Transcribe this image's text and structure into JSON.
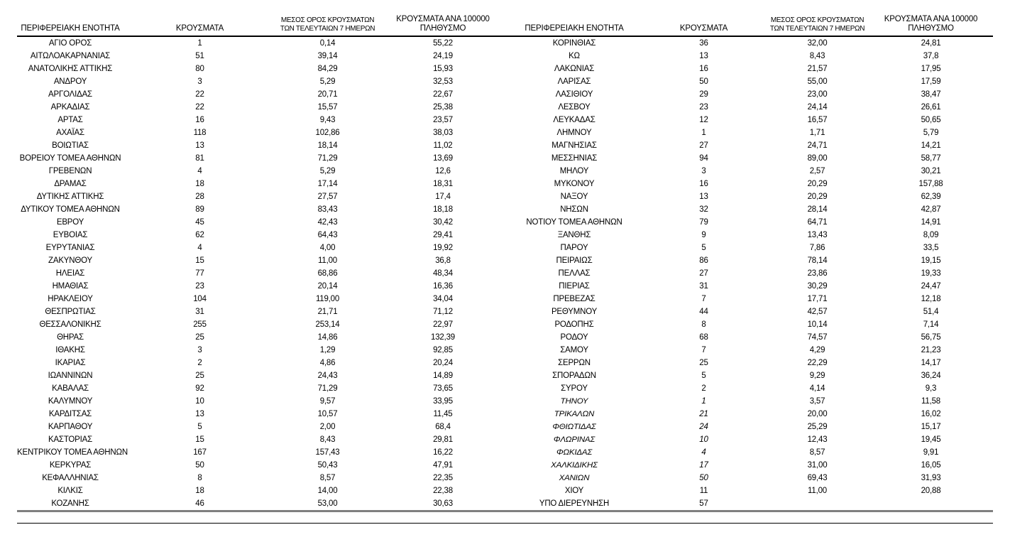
{
  "table": {
    "headers": {
      "region": "ΠΕΡΙΦΕΡΕΙΑΚΗ ΕΝΟΤΗΤΑ",
      "cases": "ΚΡΟΥΣΜΑΤΑ",
      "avg7_line1": "ΜΕΣΟΣ ΟΡΟΣ ΚΡΟΥΣΜΑΤΩΝ",
      "avg7_line2": "ΤΩΝ ΤΕΛΕΥΤΑΙΩΝ 7 ΗΜΕΡΩΝ",
      "per100k_line1": "ΚΡΟΥΣΜΑΤΑ ΑΝΑ 100000",
      "per100k_line2": "ΠΛΗΘΥΣΜΟ"
    },
    "left_rows": [
      {
        "name": "ΑΓΙΟ ΟΡΟΣ",
        "cases": "1",
        "avg7": "0,14",
        "per100k": "55,22"
      },
      {
        "name": "ΑΙΤΩΛΟΑΚΑΡΝΑΝΙΑΣ",
        "cases": "51",
        "avg7": "39,14",
        "per100k": "24,19"
      },
      {
        "name": "ΑΝΑΤΟΛΙΚΗΣ ΑΤΤΙΚΗΣ",
        "cases": "80",
        "avg7": "84,29",
        "per100k": "15,93"
      },
      {
        "name": "ΑΝΔΡΟΥ",
        "cases": "3",
        "avg7": "5,29",
        "per100k": "32,53"
      },
      {
        "name": "ΑΡΓΟΛΙΔΑΣ",
        "cases": "22",
        "avg7": "20,71",
        "per100k": "22,67"
      },
      {
        "name": "ΑΡΚΑΔΙΑΣ",
        "cases": "22",
        "avg7": "15,57",
        "per100k": "25,38"
      },
      {
        "name": "ΑΡΤΑΣ",
        "cases": "16",
        "avg7": "9,43",
        "per100k": "23,57"
      },
      {
        "name": "ΑΧΑΪΑΣ",
        "cases": "118",
        "avg7": "102,86",
        "per100k": "38,03"
      },
      {
        "name": "ΒΟΙΩΤΙΑΣ",
        "cases": "13",
        "avg7": "18,14",
        "per100k": "11,02"
      },
      {
        "name": "ΒΟΡΕΙΟΥ ΤΟΜΕΑ ΑΘΗΝΩΝ",
        "cases": "81",
        "avg7": "71,29",
        "per100k": "13,69"
      },
      {
        "name": "ΓΡΕΒΕΝΩΝ",
        "cases": "4",
        "avg7": "5,29",
        "per100k": "12,6"
      },
      {
        "name": "ΔΡΑΜΑΣ",
        "cases": "18",
        "avg7": "17,14",
        "per100k": "18,31"
      },
      {
        "name": "ΔΥΤΙΚΗΣ ΑΤΤΙΚΗΣ",
        "cases": "28",
        "avg7": "27,57",
        "per100k": "17,4"
      },
      {
        "name": "ΔΥΤΙΚΟΥ ΤΟΜΕΑ ΑΘΗΝΩΝ",
        "cases": "89",
        "avg7": "83,43",
        "per100k": "18,18"
      },
      {
        "name": "ΕΒΡΟΥ",
        "cases": "45",
        "avg7": "42,43",
        "per100k": "30,42"
      },
      {
        "name": "ΕΥΒΟΙΑΣ",
        "cases": "62",
        "avg7": "64,43",
        "per100k": "29,41"
      },
      {
        "name": "ΕΥΡΥΤΑΝΙΑΣ",
        "cases": "4",
        "avg7": "4,00",
        "per100k": "19,92"
      },
      {
        "name": "ΖΑΚΥΝΘΟΥ",
        "cases": "15",
        "avg7": "11,00",
        "per100k": "36,8"
      },
      {
        "name": "ΗΛΕΙΑΣ",
        "cases": "77",
        "avg7": "68,86",
        "per100k": "48,34"
      },
      {
        "name": "ΗΜΑΘΙΑΣ",
        "cases": "23",
        "avg7": "20,14",
        "per100k": "16,36"
      },
      {
        "name": "ΗΡΑΚΛΕΙΟΥ",
        "cases": "104",
        "avg7": "119,00",
        "per100k": "34,04"
      },
      {
        "name": "ΘΕΣΠΡΩΤΙΑΣ",
        "cases": "31",
        "avg7": "21,71",
        "per100k": "71,12"
      },
      {
        "name": "ΘΕΣΣΑΛΟΝΙΚΗΣ",
        "cases": "255",
        "avg7": "253,14",
        "per100k": "22,97"
      },
      {
        "name": "ΘΗΡΑΣ",
        "cases": "25",
        "avg7": "14,86",
        "per100k": "132,39"
      },
      {
        "name": "ΙΘΑΚΗΣ",
        "cases": "3",
        "avg7": "1,29",
        "per100k": "92,85"
      },
      {
        "name": "ΙΚΑΡΙΑΣ",
        "cases": "2",
        "avg7": "4,86",
        "per100k": "20,24"
      },
      {
        "name": "ΙΩΑΝΝΙΝΩΝ",
        "cases": "25",
        "avg7": "24,43",
        "per100k": "14,89"
      },
      {
        "name": "ΚΑΒΑΛΑΣ",
        "cases": "92",
        "avg7": "71,29",
        "per100k": "73,65"
      },
      {
        "name": "ΚΑΛΥΜΝΟΥ",
        "cases": "10",
        "avg7": "9,57",
        "per100k": "33,95"
      },
      {
        "name": "ΚΑΡΔΙΤΣΑΣ",
        "cases": "13",
        "avg7": "10,57",
        "per100k": "11,45"
      },
      {
        "name": "ΚΑΡΠΑΘΟΥ",
        "cases": "5",
        "avg7": "2,00",
        "per100k": "68,4"
      },
      {
        "name": "ΚΑΣΤΟΡΙΑΣ",
        "cases": "15",
        "avg7": "8,43",
        "per100k": "29,81"
      },
      {
        "name": "ΚΕΝΤΡΙΚΟΥ ΤΟΜΕΑ ΑΘΗΝΩΝ",
        "cases": "167",
        "avg7": "157,43",
        "per100k": "16,22"
      },
      {
        "name": "ΚΕΡΚΥΡΑΣ",
        "cases": "50",
        "avg7": "50,43",
        "per100k": "47,91"
      },
      {
        "name": "ΚΕΦΑΛΛΗΝΙΑΣ",
        "cases": "8",
        "avg7": "8,57",
        "per100k": "22,35"
      },
      {
        "name": "ΚΙΛΚΙΣ",
        "cases": "18",
        "avg7": "14,00",
        "per100k": "22,38"
      },
      {
        "name": "ΚΟΖΑΝΗΣ",
        "cases": "46",
        "avg7": "53,00",
        "per100k": "30,63"
      }
    ],
    "right_rows": [
      {
        "name": "ΚΟΡΙΝΘΙΑΣ",
        "cases": "36",
        "avg7": "32,00",
        "per100k": "24,81"
      },
      {
        "name": "ΚΩ",
        "cases": "13",
        "avg7": "8,43",
        "per100k": "37,8"
      },
      {
        "name": "ΛΑΚΩΝΙΑΣ",
        "cases": "16",
        "avg7": "21,57",
        "per100k": "17,95"
      },
      {
        "name": "ΛΑΡΙΣΑΣ",
        "cases": "50",
        "avg7": "55,00",
        "per100k": "17,59"
      },
      {
        "name": "ΛΑΣΙΘΙΟΥ",
        "cases": "29",
        "avg7": "23,00",
        "per100k": "38,47"
      },
      {
        "name": "ΛΕΣΒΟΥ",
        "cases": "23",
        "avg7": "24,14",
        "per100k": "26,61"
      },
      {
        "name": "ΛΕΥΚΑΔΑΣ",
        "cases": "12",
        "avg7": "16,57",
        "per100k": "50,65"
      },
      {
        "name": "ΛΗΜΝΟΥ",
        "cases": "1",
        "avg7": "1,71",
        "per100k": "5,79"
      },
      {
        "name": "ΜΑΓΝΗΣΙΑΣ",
        "cases": "27",
        "avg7": "24,71",
        "per100k": "14,21"
      },
      {
        "name": "ΜΕΣΣΗΝΙΑΣ",
        "cases": "94",
        "avg7": "89,00",
        "per100k": "58,77"
      },
      {
        "name": "ΜΗΛΟΥ",
        "cases": "3",
        "avg7": "2,57",
        "per100k": "30,21"
      },
      {
        "name": "ΜΥΚΟΝΟΥ",
        "cases": "16",
        "avg7": "20,29",
        "per100k": "157,88"
      },
      {
        "name": "ΝΑΞΟΥ",
        "cases": "13",
        "avg7": "20,29",
        "per100k": "62,39"
      },
      {
        "name": "ΝΗΣΩΝ",
        "cases": "32",
        "avg7": "28,14",
        "per100k": "42,87"
      },
      {
        "name": "ΝΟΤΙΟΥ ΤΟΜΕΑ ΑΘΗΝΩΝ",
        "cases": "79",
        "avg7": "64,71",
        "per100k": "14,91"
      },
      {
        "name": "ΞΑΝΘΗΣ",
        "cases": "9",
        "avg7": "13,43",
        "per100k": "8,09"
      },
      {
        "name": "ΠΑΡΟΥ",
        "cases": "5",
        "avg7": "7,86",
        "per100k": "33,5"
      },
      {
        "name": "ΠΕΙΡΑΙΩΣ",
        "cases": "86",
        "avg7": "78,14",
        "per100k": "19,15"
      },
      {
        "name": "ΠΕΛΛΑΣ",
        "cases": "27",
        "avg7": "23,86",
        "per100k": "19,33"
      },
      {
        "name": "ΠΙΕΡΙΑΣ",
        "cases": "31",
        "avg7": "30,29",
        "per100k": "24,47"
      },
      {
        "name": "ΠΡΕΒΕΖΑΣ",
        "cases": "7",
        "avg7": "17,71",
        "per100k": "12,18"
      },
      {
        "name": "ΡΕΘΥΜΝΟΥ",
        "cases": "44",
        "avg7": "42,57",
        "per100k": "51,4"
      },
      {
        "name": "ΡΟΔΟΠΗΣ",
        "cases": "8",
        "avg7": "10,14",
        "per100k": "7,14"
      },
      {
        "name": "ΡΟΔΟΥ",
        "cases": "68",
        "avg7": "74,57",
        "per100k": "56,75"
      },
      {
        "name": "ΣΑΜΟΥ",
        "cases": "7",
        "avg7": "4,29",
        "per100k": "21,23"
      },
      {
        "name": "ΣΕΡΡΩΝ",
        "cases": "25",
        "avg7": "22,29",
        "per100k": "14,17"
      },
      {
        "name": "ΣΠΟΡΑΔΩΝ",
        "cases": "5",
        "avg7": "9,29",
        "per100k": "36,24"
      },
      {
        "name": "ΣΥΡΟΥ",
        "cases": "2",
        "avg7": "4,14",
        "per100k": "9,3"
      },
      {
        "name": "ΤΗΝΟΥ",
        "cases": "1",
        "avg7": "3,57",
        "per100k": "11,58",
        "italic": true
      },
      {
        "name": "ΤΡΙΚΑΛΩΝ",
        "cases": "21",
        "avg7": "20,00",
        "per100k": "16,02",
        "italic": true
      },
      {
        "name": "ΦΘΙΩΤΙΔΑΣ",
        "cases": "24",
        "avg7": "25,29",
        "per100k": "15,17",
        "italic": true
      },
      {
        "name": "ΦΛΩΡΙΝΑΣ",
        "cases": "10",
        "avg7": "12,43",
        "per100k": "19,45",
        "italic": true
      },
      {
        "name": "ΦΩΚΙΔΑΣ",
        "cases": "4",
        "avg7": "8,57",
        "per100k": "9,91",
        "italic": true
      },
      {
        "name": "ΧΑΛΚΙΔΙΚΗΣ",
        "cases": "17",
        "avg7": "31,00",
        "per100k": "16,05",
        "italic": true
      },
      {
        "name": "ΧΑΝΙΩΝ",
        "cases": "50",
        "avg7": "69,43",
        "per100k": "31,93",
        "italic": true
      },
      {
        "name": "ΧΙΟΥ",
        "cases": "11",
        "avg7": "11,00",
        "per100k": "20,88"
      },
      {
        "name": "ΥΠΟ ΔΙΕΡΕΥΝΗΣΗ",
        "cases": "57",
        "avg7": "",
        "per100k": ""
      }
    ]
  }
}
